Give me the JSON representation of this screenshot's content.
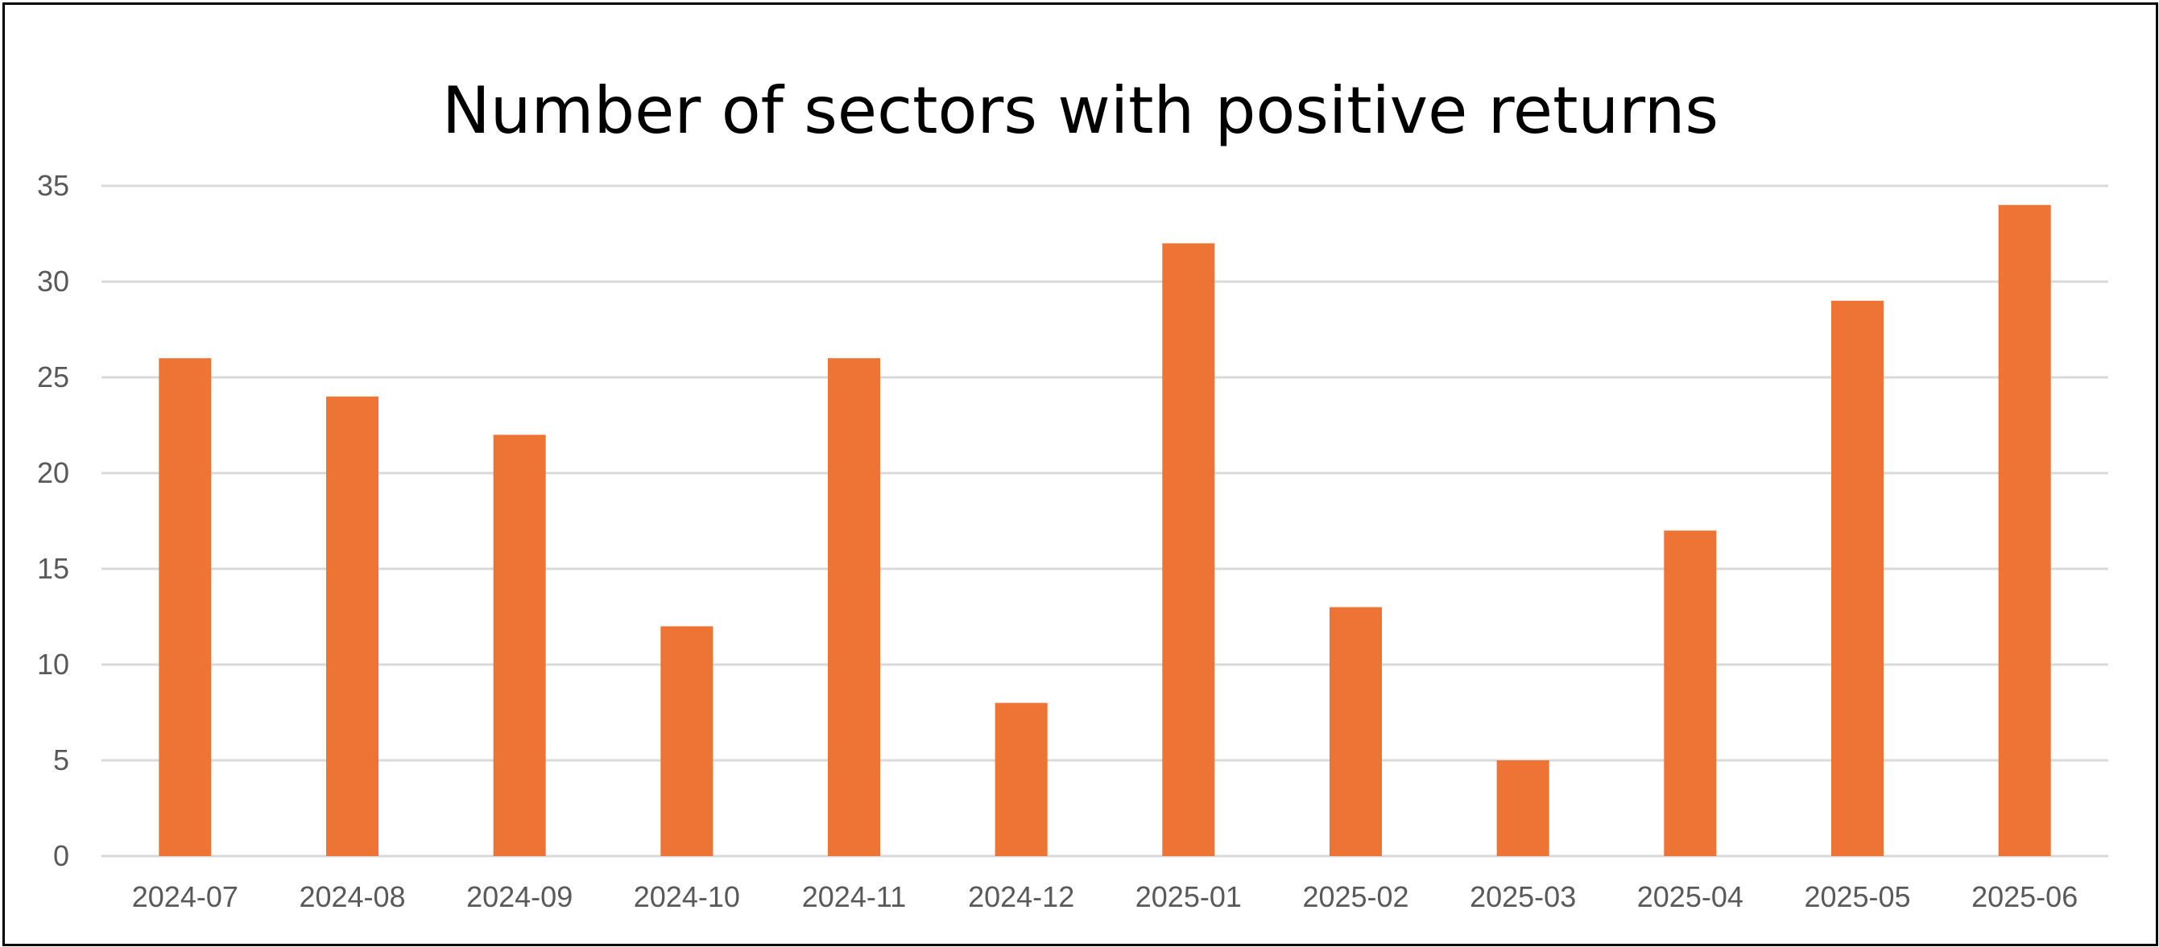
{
  "chart_data": {
    "type": "bar",
    "title": "Number of sectors with positive returns",
    "xlabel": "",
    "ylabel": "",
    "categories": [
      "2024-07",
      "2024-08",
      "2024-09",
      "2024-10",
      "2024-11",
      "2024-12",
      "2025-01",
      "2025-02",
      "2025-03",
      "2025-04",
      "2025-05",
      "2025-06"
    ],
    "values": [
      26,
      24,
      22,
      12,
      26,
      8,
      32,
      13,
      5,
      17,
      29,
      34
    ],
    "ylim": [
      0,
      35
    ],
    "yticks": [
      "0",
      "5",
      "10",
      "15",
      "20",
      "25",
      "30",
      "35"
    ],
    "grid": true,
    "legend": "none",
    "bar_color": "#ED7434",
    "grid_color": "#D9D9D9"
  }
}
